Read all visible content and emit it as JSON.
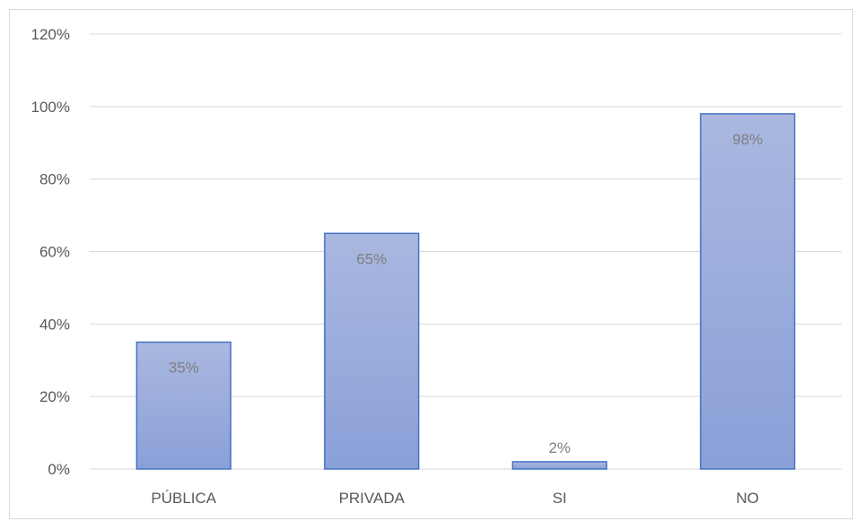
{
  "chart_data": {
    "type": "bar",
    "categories": [
      "PÚBLICA",
      "PRIVADA",
      "SI",
      "NO"
    ],
    "values": [
      35,
      65,
      2,
      98
    ],
    "data_labels": [
      "35%",
      "65%",
      "2%",
      "98%"
    ],
    "title": "",
    "xlabel": "",
    "ylabel": "",
    "ylim": [
      0,
      120
    ],
    "yticks": [
      "0%",
      "20%",
      "40%",
      "60%",
      "80%",
      "100%",
      "120%"
    ],
    "grid": true,
    "legend": "none",
    "colors": {
      "bar_fill_top": "#aab8e0",
      "bar_fill_bottom": "#8aa0d8",
      "bar_border": "#4472c4",
      "gridline": "#d9d9d9",
      "text": "#595959"
    }
  }
}
